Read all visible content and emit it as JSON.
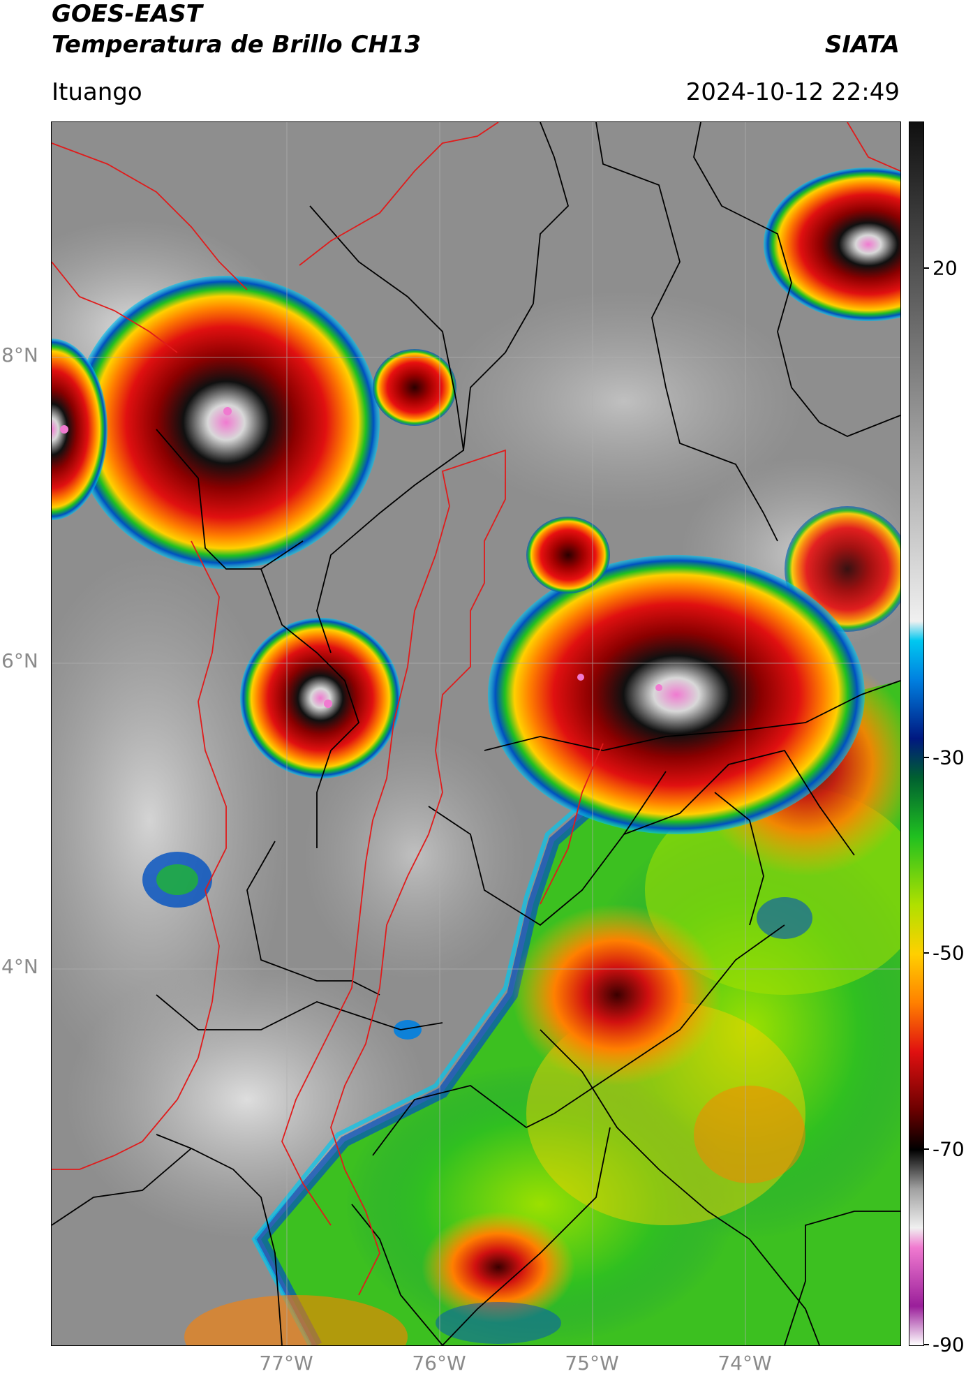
{
  "header": {
    "title_line1": "GOES-EAST",
    "title_line2": "Temperatura de Brillo CH13",
    "organization": "SIATA",
    "location": "Ituango",
    "timestamp": "2024-10-12 22:49"
  },
  "map": {
    "lat_labels": [
      "8°N",
      "6°N",
      "4°N"
    ],
    "lon_labels": [
      "77°W",
      "76°W",
      "75°W",
      "74°W"
    ],
    "boundary_colors": {
      "department": "#e01b1b",
      "country": "#000000"
    }
  },
  "colorbar": {
    "range": [
      -90,
      35
    ],
    "tick_values": [
      20,
      -30,
      -50,
      -70,
      -90
    ],
    "tick_labels": [
      "20",
      "-30",
      "-50",
      "-70",
      "-90"
    ],
    "stops": [
      {
        "value": -90,
        "color": "#ffffff"
      },
      {
        "value": -86,
        "color": "#9a1f9a"
      },
      {
        "value": -80,
        "color": "#f07ad0"
      },
      {
        "value": -78,
        "color": "#f0f0f0"
      },
      {
        "value": -74,
        "color": "#a0a0a0"
      },
      {
        "value": -70,
        "color": "#000000"
      },
      {
        "value": -66,
        "color": "#6a0000"
      },
      {
        "value": -60,
        "color": "#e01010"
      },
      {
        "value": -55,
        "color": "#ff8000"
      },
      {
        "value": -50,
        "color": "#ffd000"
      },
      {
        "value": -45,
        "color": "#b0e000"
      },
      {
        "value": -38,
        "color": "#20c020"
      },
      {
        "value": -32,
        "color": "#006030"
      },
      {
        "value": -28,
        "color": "#001880"
      },
      {
        "value": -22,
        "color": "#0080e0"
      },
      {
        "value": -18,
        "color": "#00c8f0"
      },
      {
        "value": -16,
        "color": "#f0f0f0"
      },
      {
        "value": 35,
        "color": "#101010"
      }
    ]
  }
}
